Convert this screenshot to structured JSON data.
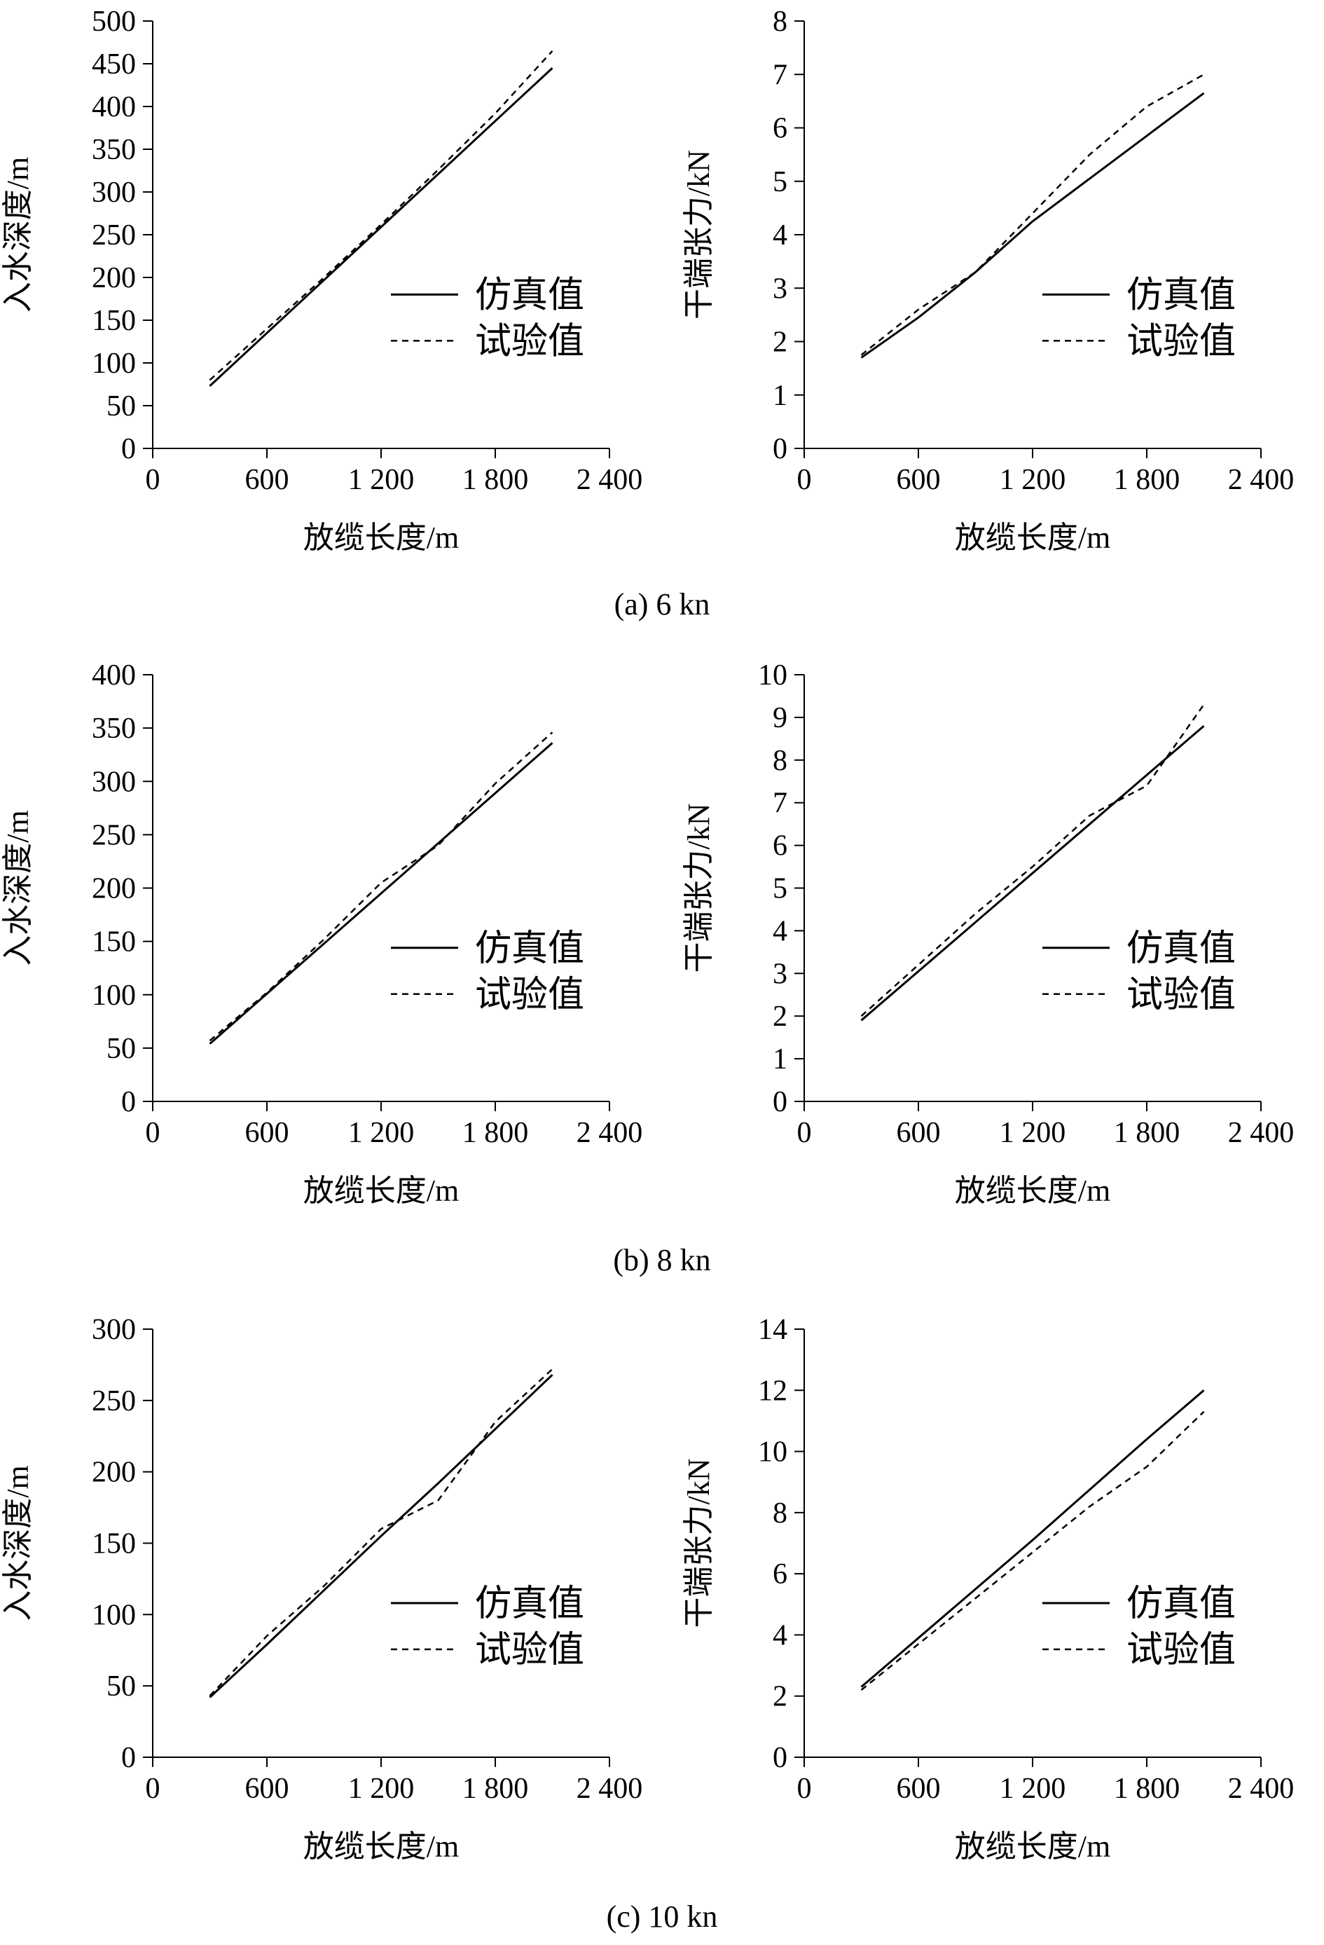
{
  "captions": [
    "(a) 6 kn",
    "(b) 8 kn",
    "(c) 10 kn"
  ],
  "chart_data": [
    {
      "type": "line",
      "panel": "a-left",
      "xlabel": "放缆长度/m",
      "ylabel": "入水深度/m",
      "xlim": [
        0,
        2400
      ],
      "ylim": [
        0,
        500
      ],
      "xticks": [
        0,
        600,
        1200,
        1800,
        2400
      ],
      "xtick_labels": [
        "0",
        "600",
        "1 200",
        "1 800",
        "2 400"
      ],
      "yticks": [
        0,
        50,
        100,
        150,
        200,
        250,
        300,
        350,
        400,
        450,
        500
      ],
      "ytick_labels": [
        "0",
        "50",
        "100",
        "150",
        "200",
        "250",
        "300",
        "350",
        "400",
        "450",
        "500"
      ],
      "grid": false,
      "legend": "right-middle",
      "series": [
        {
          "name": "仿真值",
          "style": "solid",
          "x": [
            300,
            600,
            900,
            1200,
            1500,
            1800,
            2100
          ],
          "y": [
            73,
            135,
            197,
            259,
            321,
            383,
            445
          ]
        },
        {
          "name": "试验值",
          "style": "dashed",
          "x": [
            300,
            600,
            900,
            1200,
            1500,
            1800,
            2100
          ],
          "y": [
            80,
            140,
            200,
            262,
            326,
            392,
            465
          ]
        }
      ]
    },
    {
      "type": "line",
      "panel": "a-right",
      "xlabel": "放缆长度/m",
      "ylabel": "干端张力/kN",
      "xlim": [
        0,
        2400
      ],
      "ylim": [
        0,
        8
      ],
      "xticks": [
        0,
        600,
        1200,
        1800,
        2400
      ],
      "xtick_labels": [
        "0",
        "600",
        "1 200",
        "1 800",
        "2 400"
      ],
      "yticks": [
        0,
        1,
        2,
        3,
        4,
        5,
        6,
        7,
        8
      ],
      "ytick_labels": [
        "0",
        "1",
        "2",
        "3",
        "4",
        "5",
        "6",
        "7",
        "8"
      ],
      "grid": false,
      "legend": "right-middle",
      "series": [
        {
          "name": "仿真值",
          "style": "solid",
          "x": [
            300,
            600,
            900,
            1200,
            1500,
            1800,
            2100
          ],
          "y": [
            1.7,
            2.45,
            3.3,
            4.25,
            5.05,
            5.85,
            6.65
          ]
        },
        {
          "name": "试验值",
          "style": "dashed",
          "x": [
            300,
            600,
            900,
            1200,
            1500,
            1800,
            2100
          ],
          "y": [
            1.75,
            2.6,
            3.3,
            4.4,
            5.5,
            6.4,
            7.0
          ]
        }
      ]
    },
    {
      "type": "line",
      "panel": "b-left",
      "xlabel": "放缆长度/m",
      "ylabel": "入水深度/m",
      "xlim": [
        0,
        2400
      ],
      "ylim": [
        0,
        400
      ],
      "xticks": [
        0,
        600,
        1200,
        1800,
        2400
      ],
      "xtick_labels": [
        "0",
        "600",
        "1 200",
        "1 800",
        "2 400"
      ],
      "yticks": [
        0,
        50,
        100,
        150,
        200,
        250,
        300,
        350,
        400
      ],
      "ytick_labels": [
        "0",
        "50",
        "100",
        "150",
        "200",
        "250",
        "300",
        "350",
        "400"
      ],
      "grid": false,
      "legend": "right-middle",
      "series": [
        {
          "name": "仿真值",
          "style": "solid",
          "x": [
            300,
            600,
            900,
            1200,
            1500,
            1800,
            2100
          ],
          "y": [
            54,
            101,
            148,
            195,
            242,
            289,
            336
          ]
        },
        {
          "name": "试验值",
          "style": "dashed",
          "x": [
            300,
            600,
            900,
            1200,
            1500,
            1800,
            2100
          ],
          "y": [
            57,
            102,
            152,
            205,
            240,
            298,
            346
          ]
        }
      ]
    },
    {
      "type": "line",
      "panel": "b-right",
      "xlabel": "放缆长度/m",
      "ylabel": "干端张力/kN",
      "xlim": [
        0,
        2400
      ],
      "ylim": [
        0,
        10
      ],
      "xticks": [
        0,
        600,
        1200,
        1800,
        2400
      ],
      "xtick_labels": [
        "0",
        "600",
        "1 200",
        "1 800",
        "2 400"
      ],
      "yticks": [
        0,
        1,
        2,
        3,
        4,
        5,
        6,
        7,
        8,
        9,
        10
      ],
      "ytick_labels": [
        "0",
        "1",
        "2",
        "3",
        "4",
        "5",
        "6",
        "7",
        "8",
        "9",
        "10"
      ],
      "grid": false,
      "legend": "right-middle",
      "series": [
        {
          "name": "仿真值",
          "style": "solid",
          "x": [
            300,
            600,
            900,
            1200,
            1500,
            1800,
            2100
          ],
          "y": [
            1.9,
            3.05,
            4.2,
            5.35,
            6.5,
            7.65,
            8.8
          ]
        },
        {
          "name": "试验值",
          "style": "dashed",
          "x": [
            300,
            600,
            900,
            1200,
            1500,
            1800,
            2100
          ],
          "y": [
            2.0,
            3.2,
            4.4,
            5.5,
            6.7,
            7.4,
            9.3
          ]
        }
      ]
    },
    {
      "type": "line",
      "panel": "c-left",
      "xlabel": "放缆长度/m",
      "ylabel": "入水深度/m",
      "xlim": [
        0,
        2400
      ],
      "ylim": [
        0,
        300
      ],
      "xticks": [
        0,
        600,
        1200,
        1800,
        2400
      ],
      "xtick_labels": [
        "0",
        "600",
        "1 200",
        "1 800",
        "2 400"
      ],
      "yticks": [
        0,
        50,
        100,
        150,
        200,
        250,
        300
      ],
      "ytick_labels": [
        "0",
        "50",
        "100",
        "150",
        "200",
        "250",
        "300"
      ],
      "grid": false,
      "legend": "right-middle",
      "series": [
        {
          "name": "仿真值",
          "style": "solid",
          "x": [
            300,
            600,
            900,
            1200,
            1500,
            1800,
            2100
          ],
          "y": [
            42,
            79,
            117,
            155,
            192,
            230,
            268
          ]
        },
        {
          "name": "试验值",
          "style": "dashed",
          "x": [
            300,
            600,
            900,
            1200,
            1500,
            1800,
            2100
          ],
          "y": [
            43,
            85,
            120,
            160,
            180,
            235,
            272
          ]
        }
      ]
    },
    {
      "type": "line",
      "panel": "c-right",
      "xlabel": "放缆长度/m",
      "ylabel": "干端张力/kN",
      "xlim": [
        0,
        2400
      ],
      "ylim": [
        0,
        14
      ],
      "xticks": [
        0,
        600,
        1200,
        1800,
        2400
      ],
      "xtick_labels": [
        "0",
        "600",
        "1 200",
        "1 800",
        "2 400"
      ],
      "yticks": [
        0,
        2,
        4,
        6,
        8,
        10,
        12,
        14
      ],
      "ytick_labels": [
        "0",
        "2",
        "4",
        "6",
        "8",
        "10",
        "12",
        "14"
      ],
      "grid": false,
      "legend": "right-middle",
      "series": [
        {
          "name": "仿真值",
          "style": "solid",
          "x": [
            300,
            600,
            900,
            1200,
            1500,
            1800,
            2100
          ],
          "y": [
            2.3,
            3.9,
            5.5,
            7.1,
            8.75,
            10.4,
            12.0
          ]
        },
        {
          "name": "试验值",
          "style": "dashed",
          "x": [
            300,
            600,
            900,
            1200,
            1500,
            1800,
            2100
          ],
          "y": [
            2.2,
            3.7,
            5.2,
            6.7,
            8.2,
            9.5,
            11.3
          ]
        }
      ]
    }
  ]
}
